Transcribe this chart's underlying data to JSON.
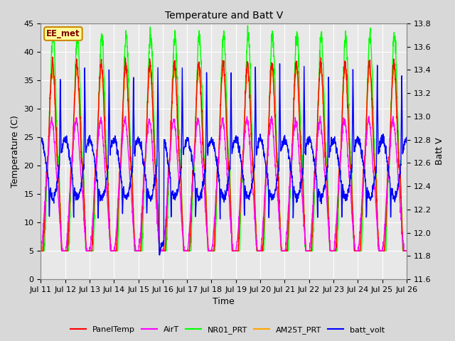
{
  "title": "Temperature and Batt V",
  "xlabel": "Time",
  "ylabel_left": "Temperature (C)",
  "ylabel_right": "Batt V",
  "annotation": "EE_met",
  "ylim_left": [
    0,
    45
  ],
  "ylim_right": [
    11.6,
    13.8
  ],
  "xtick_labels": [
    "Jul 11",
    "Jul 12",
    "Jul 13",
    "Jul 14",
    "Jul 15",
    "Jul 16",
    "Jul 17",
    "Jul 18",
    "Jul 19",
    "Jul 20",
    "Jul 21",
    "Jul 22",
    "Jul 23",
    "Jul 24",
    "Jul 25",
    "Jul 26"
  ],
  "yticks_left": [
    0,
    5,
    10,
    15,
    20,
    25,
    30,
    35,
    40,
    45
  ],
  "yticks_right": [
    11.6,
    11.8,
    12.0,
    12.2,
    12.4,
    12.6,
    12.8,
    13.0,
    13.2,
    13.4,
    13.6,
    13.8
  ],
  "colors": {
    "PanelTemp": "#ff0000",
    "AirT": "#ff00ff",
    "NR01_PRT": "#00ff00",
    "AM25T_PRT": "#ffa500",
    "batt_volt": "#0000ff"
  },
  "legend_entries": [
    "PanelTemp",
    "AirT",
    "NR01_PRT",
    "AM25T_PRT",
    "batt_volt"
  ],
  "bg_color": "#d8d8d8",
  "plot_bg_color": "#e8e8e8",
  "linewidth": 1.0,
  "n_points": 2000,
  "total_days": 15,
  "title_fontsize": 10,
  "label_fontsize": 9,
  "tick_fontsize": 8
}
